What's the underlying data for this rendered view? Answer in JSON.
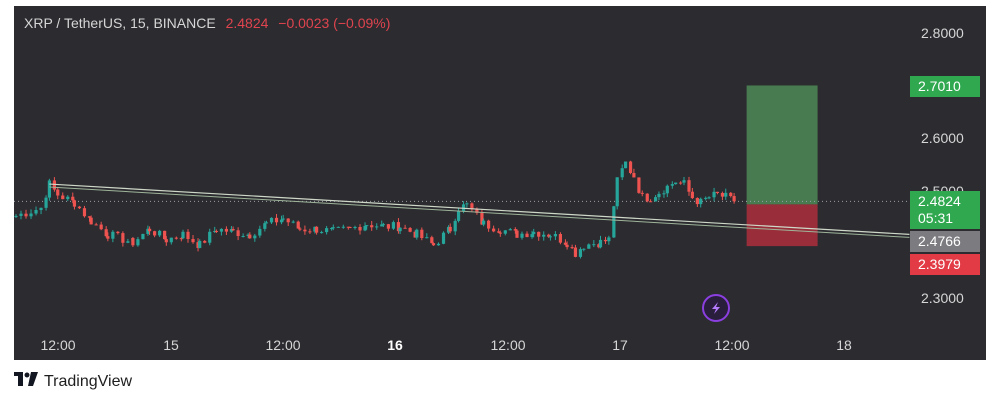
{
  "legend": {
    "symbol": "XRP / TetherUS, 15, BINANCE",
    "last": "2.4824",
    "change": "−0.0023 (−0.09%)"
  },
  "price_tags": {
    "target": "2.7010",
    "current": "2.4824",
    "countdown": "05:31",
    "entry": "2.4766",
    "stop": "2.3979"
  },
  "colors": {
    "background": "#2b2b30",
    "up": "#26a69a",
    "down": "#ef5350",
    "profit_zone": "#4e8a55",
    "loss_zone": "#b5303d",
    "tag_green": "#2fa84f",
    "tag_red": "#e23b46",
    "tag_gray": "#7b7b80"
  },
  "footer": {
    "brand": "TradingView"
  },
  "icons": {
    "footer_logo": "tradingview-logo-icon",
    "flash": "lightning-icon"
  },
  "chart_data": {
    "type": "candlestick",
    "symbol": "XRP / TetherUS",
    "interval": "15",
    "exchange": "BINANCE",
    "x_tick_labels": [
      "12:00",
      "15",
      "12:00",
      "16",
      "12:00",
      "17",
      "12:00",
      "18"
    ],
    "x_tick_bold": [
      "16"
    ],
    "y_tick_labels": [
      "2.8000",
      "2.6000",
      "2.5000",
      "2.3000"
    ],
    "y_ticks": [
      2.8,
      2.6,
      2.5,
      2.3
    ],
    "ylim": [
      2.24,
      2.86
    ],
    "price_path": [
      {
        "t": 0,
        "p": 2.455
      },
      {
        "t": 3,
        "p": 2.47
      },
      {
        "t": 4,
        "p": 2.515
      },
      {
        "t": 5,
        "p": 2.495
      },
      {
        "t": 7,
        "p": 2.48
      },
      {
        "t": 9,
        "p": 2.445
      },
      {
        "t": 11,
        "p": 2.42
      },
      {
        "t": 14,
        "p": 2.405
      },
      {
        "t": 16,
        "p": 2.43
      },
      {
        "t": 18,
        "p": 2.41
      },
      {
        "t": 20,
        "p": 2.42
      },
      {
        "t": 22,
        "p": 2.4
      },
      {
        "t": 24,
        "p": 2.43
      },
      {
        "t": 26,
        "p": 2.425
      },
      {
        "t": 28,
        "p": 2.42
      },
      {
        "t": 30,
        "p": 2.44
      },
      {
        "t": 32,
        "p": 2.45
      },
      {
        "t": 34,
        "p": 2.43
      },
      {
        "t": 36,
        "p": 2.43
      },
      {
        "t": 38,
        "p": 2.425
      },
      {
        "t": 40,
        "p": 2.43
      },
      {
        "t": 42,
        "p": 2.44
      },
      {
        "t": 44,
        "p": 2.435
      },
      {
        "t": 46,
        "p": 2.435
      },
      {
        "t": 48,
        "p": 2.42
      },
      {
        "t": 50,
        "p": 2.4
      },
      {
        "t": 52,
        "p": 2.43
      },
      {
        "t": 53,
        "p": 2.47
      },
      {
        "t": 54,
        "p": 2.475
      },
      {
        "t": 56,
        "p": 2.44
      },
      {
        "t": 58,
        "p": 2.43
      },
      {
        "t": 60,
        "p": 2.42
      },
      {
        "t": 62,
        "p": 2.425
      },
      {
        "t": 64,
        "p": 2.42
      },
      {
        "t": 66,
        "p": 2.405
      },
      {
        "t": 67,
        "p": 2.385
      },
      {
        "t": 68,
        "p": 2.4
      },
      {
        "t": 70,
        "p": 2.405
      },
      {
        "t": 71,
        "p": 2.41
      },
      {
        "t": 72,
        "p": 2.52
      },
      {
        "t": 73,
        "p": 2.555
      },
      {
        "t": 74,
        "p": 2.53
      },
      {
        "t": 75,
        "p": 2.49
      },
      {
        "t": 76,
        "p": 2.49
      },
      {
        "t": 77,
        "p": 2.5
      },
      {
        "t": 78,
        "p": 2.51
      },
      {
        "t": 79,
        "p": 2.52
      },
      {
        "t": 80,
        "p": 2.515
      },
      {
        "t": 81,
        "p": 2.49
      },
      {
        "t": 82,
        "p": 2.48
      },
      {
        "t": 83,
        "p": 2.49
      },
      {
        "t": 84,
        "p": 2.495
      },
      {
        "t": 85,
        "p": 2.49
      },
      {
        "t": 86,
        "p": 2.4824
      }
    ],
    "trendline": {
      "from": {
        "t": 4,
        "p": 2.515
      },
      "to": {
        "t": 107,
        "p": 2.42
      }
    },
    "position": {
      "entry": 2.4766,
      "target": 2.701,
      "stop": 2.3979,
      "t_start": 87.5,
      "t_end": 96
    }
  }
}
